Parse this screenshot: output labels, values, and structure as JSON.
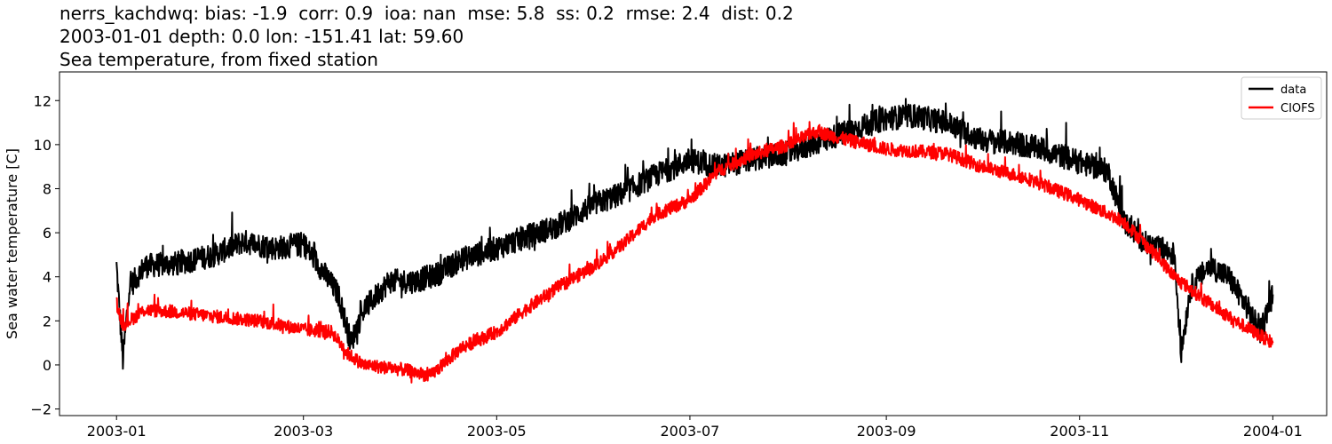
{
  "title_lines": [
    "nerrs_kachdwq: bias: -1.9  corr: 0.9  ioa: nan  mse: 5.8  ss: 0.2  rmse: 2.4  dist: 0.2",
    "2003-01-01 depth: 0.0 lon: -151.41 lat: 59.60",
    "Sea temperature, from fixed station"
  ],
  "chart_data": {
    "type": "line",
    "ylabel": "Sea water temperature [C]",
    "xlabel": "",
    "x_ticks": [
      "2003-01",
      "2003-03",
      "2003-05",
      "2003-07",
      "2003-09",
      "2003-11",
      "2004-01"
    ],
    "y_ticks": [
      "−2",
      "0",
      "2",
      "4",
      "6",
      "8",
      "10",
      "12"
    ],
    "xlim": [
      "2002-12-14",
      "2004-01-18"
    ],
    "ylim": [
      -2.3,
      13.3
    ],
    "grid": false,
    "legend_position": "top-right",
    "series": [
      {
        "name": "data",
        "color": "#000000",
        "points": [
          [
            "2003-01-01",
            4.5
          ],
          [
            "2003-01-03",
            0.2
          ],
          [
            "2003-01-05",
            3.5
          ],
          [
            "2003-01-10",
            4.5
          ],
          [
            "2003-01-20",
            4.6
          ],
          [
            "2003-02-01",
            5.0
          ],
          [
            "2003-02-10",
            5.6
          ],
          [
            "2003-02-20",
            5.3
          ],
          [
            "2003-03-01",
            5.5
          ],
          [
            "2003-03-06",
            4.5
          ],
          [
            "2003-03-12",
            3.2
          ],
          [
            "2003-03-16",
            1.0
          ],
          [
            "2003-03-20",
            2.5
          ],
          [
            "2003-03-28",
            3.8
          ],
          [
            "2003-04-05",
            3.8
          ],
          [
            "2003-04-12",
            4.1
          ],
          [
            "2003-04-20",
            4.8
          ],
          [
            "2003-05-01",
            5.3
          ],
          [
            "2003-05-10",
            5.8
          ],
          [
            "2003-05-20",
            6.3
          ],
          [
            "2003-06-01",
            7.3
          ],
          [
            "2003-06-10",
            7.8
          ],
          [
            "2003-06-20",
            8.6
          ],
          [
            "2003-07-01",
            9.3
          ],
          [
            "2003-07-10",
            9.0
          ],
          [
            "2003-07-20",
            9.3
          ],
          [
            "2003-08-01",
            9.6
          ],
          [
            "2003-08-10",
            10.1
          ],
          [
            "2003-08-20",
            10.6
          ],
          [
            "2003-09-01",
            11.2
          ],
          [
            "2003-09-10",
            11.3
          ],
          [
            "2003-09-20",
            11.0
          ],
          [
            "2003-10-01",
            10.2
          ],
          [
            "2003-10-10",
            10.1
          ],
          [
            "2003-10-20",
            9.8
          ],
          [
            "2003-11-01",
            9.2
          ],
          [
            "2003-11-10",
            8.8
          ],
          [
            "2003-11-15",
            6.5
          ],
          [
            "2003-11-22",
            5.5
          ],
          [
            "2003-12-01",
            5.0
          ],
          [
            "2003-12-03",
            0.5
          ],
          [
            "2003-12-06",
            3.5
          ],
          [
            "2003-12-12",
            4.5
          ],
          [
            "2003-12-18",
            4.0
          ],
          [
            "2003-12-24",
            2.6
          ],
          [
            "2003-12-28",
            1.5
          ],
          [
            "2004-01-01",
            3.2
          ]
        ]
      },
      {
        "name": "CIOFS",
        "color": "#ff0000",
        "points": [
          [
            "2003-01-01",
            2.8
          ],
          [
            "2003-01-03",
            1.8
          ],
          [
            "2003-01-10",
            2.5
          ],
          [
            "2003-01-20",
            2.4
          ],
          [
            "2003-02-01",
            2.2
          ],
          [
            "2003-02-15",
            2.0
          ],
          [
            "2003-03-01",
            1.6
          ],
          [
            "2003-03-10",
            1.5
          ],
          [
            "2003-03-15",
            0.5
          ],
          [
            "2003-03-20",
            0.0
          ],
          [
            "2003-04-01",
            -0.2
          ],
          [
            "2003-04-10",
            -0.5
          ],
          [
            "2003-04-20",
            0.8
          ],
          [
            "2003-05-01",
            1.5
          ],
          [
            "2003-05-10",
            2.5
          ],
          [
            "2003-05-20",
            3.5
          ],
          [
            "2003-06-01",
            4.5
          ],
          [
            "2003-06-10",
            5.5
          ],
          [
            "2003-06-20",
            6.8
          ],
          [
            "2003-07-01",
            7.5
          ],
          [
            "2003-07-10",
            8.8
          ],
          [
            "2003-07-20",
            9.5
          ],
          [
            "2003-08-01",
            10.0
          ],
          [
            "2003-08-10",
            10.6
          ],
          [
            "2003-08-20",
            10.2
          ],
          [
            "2003-09-01",
            9.8
          ],
          [
            "2003-09-20",
            9.6
          ],
          [
            "2003-10-01",
            9.0
          ],
          [
            "2003-10-15",
            8.5
          ],
          [
            "2003-11-01",
            7.5
          ],
          [
            "2003-11-15",
            6.5
          ],
          [
            "2003-11-25",
            5.0
          ],
          [
            "2003-12-01",
            4.0
          ],
          [
            "2003-12-10",
            3.0
          ],
          [
            "2003-12-20",
            2.0
          ],
          [
            "2004-01-01",
            1.0
          ]
        ]
      }
    ]
  }
}
